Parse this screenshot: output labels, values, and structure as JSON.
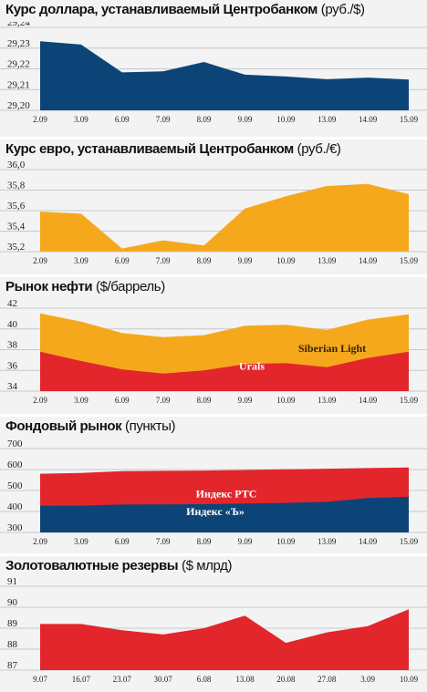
{
  "colors": {
    "blue": "#0c4478",
    "orange": "#f6a81c",
    "red": "#e3262c",
    "grid": "#c8c8c8",
    "panel": "#f3f3f3"
  },
  "chart_data": [
    {
      "type": "area",
      "title": "Курс доллара, устанавливаемый Центробанком",
      "unit": "(руб./$)",
      "categories": [
        "2.09",
        "3.09",
        "6.09",
        "7.09",
        "8.09",
        "9.09",
        "10.09",
        "13.09",
        "14.09",
        "15.09"
      ],
      "yticks": [
        "29,24",
        "29,23",
        "29,22",
        "29,21",
        "29,20"
      ],
      "ylim": [
        29.2,
        29.24
      ],
      "series": [
        {
          "values": [
            29.2333,
            29.2317,
            29.2183,
            29.2188,
            29.2233,
            29.2172,
            29.2163,
            29.215,
            29.2158,
            29.2148
          ],
          "color": "#0c4478"
        }
      ]
    },
    {
      "type": "area",
      "title": "Курс евро, устанавливаемый Центробанком",
      "unit": "(руб./€)",
      "categories": [
        "2.09",
        "3.09",
        "6.09",
        "7.09",
        "8.09",
        "9.09",
        "10.09",
        "13.09",
        "14.09",
        "15.09"
      ],
      "yticks": [
        "36,0",
        "35,8",
        "35,6",
        "35,4",
        "35,2"
      ],
      "ylim": [
        35.2,
        36.0
      ],
      "series": [
        {
          "values": [
            35.59,
            35.57,
            35.23,
            35.31,
            35.26,
            35.62,
            35.74,
            35.84,
            35.86,
            35.76
          ],
          "color": "#f6a81c"
        }
      ]
    },
    {
      "type": "area",
      "title": "Рынок нефти",
      "unit": "($/баррель)",
      "categories": [
        "2.09",
        "3.09",
        "6.09",
        "7.09",
        "8.09",
        "9.09",
        "10.09",
        "13.09",
        "14.09",
        "15.09"
      ],
      "yticks": [
        "42",
        "40",
        "38",
        "36",
        "34"
      ],
      "ylim": [
        34,
        42
      ],
      "series": [
        {
          "name": "Siberian Light",
          "values": [
            41.5,
            40.7,
            39.6,
            39.2,
            39.4,
            40.3,
            40.4,
            39.9,
            40.9,
            41.4
          ],
          "color": "#f6a81c"
        },
        {
          "name": "Urals",
          "values": [
            37.8,
            36.9,
            36.1,
            35.7,
            36.0,
            36.6,
            36.7,
            36.3,
            37.2,
            37.8
          ],
          "color": "#e3262c"
        }
      ]
    },
    {
      "type": "area",
      "title": "Фондовый рынок",
      "unit": "(пункты)",
      "categories": [
        "2.09",
        "3.09",
        "6.09",
        "7.09",
        "8.09",
        "9.09",
        "10.09",
        "13.09",
        "14.09",
        "15.09"
      ],
      "yticks": [
        "700",
        "600",
        "500",
        "400",
        "300"
      ],
      "ylim": [
        300,
        700
      ],
      "series": [
        {
          "name": "Индекс РТС",
          "values": [
            580,
            584,
            592,
            594,
            595,
            598,
            601,
            604,
            607,
            610
          ],
          "color": "#e3262c"
        },
        {
          "name": "Индекс «Ъ»",
          "values": [
            427,
            428,
            433,
            434,
            435,
            438,
            441,
            446,
            464,
            470
          ],
          "color": "#0c4478"
        }
      ]
    },
    {
      "type": "area",
      "title": "Золотовалютные резервы",
      "unit": "($ млрд)",
      "categories": [
        "9.07",
        "16.07",
        "23.07",
        "30.07",
        "6.08",
        "13.08",
        "20.08",
        "27.08",
        "3.09",
        "10.09"
      ],
      "yticks": [
        "91",
        "90",
        "89",
        "88",
        "87"
      ],
      "ylim": [
        87,
        91
      ],
      "series": [
        {
          "values": [
            89.2,
            89.2,
            88.9,
            88.7,
            89.0,
            89.6,
            88.3,
            88.8,
            89.1,
            89.9
          ],
          "color": "#e3262c"
        }
      ]
    }
  ]
}
